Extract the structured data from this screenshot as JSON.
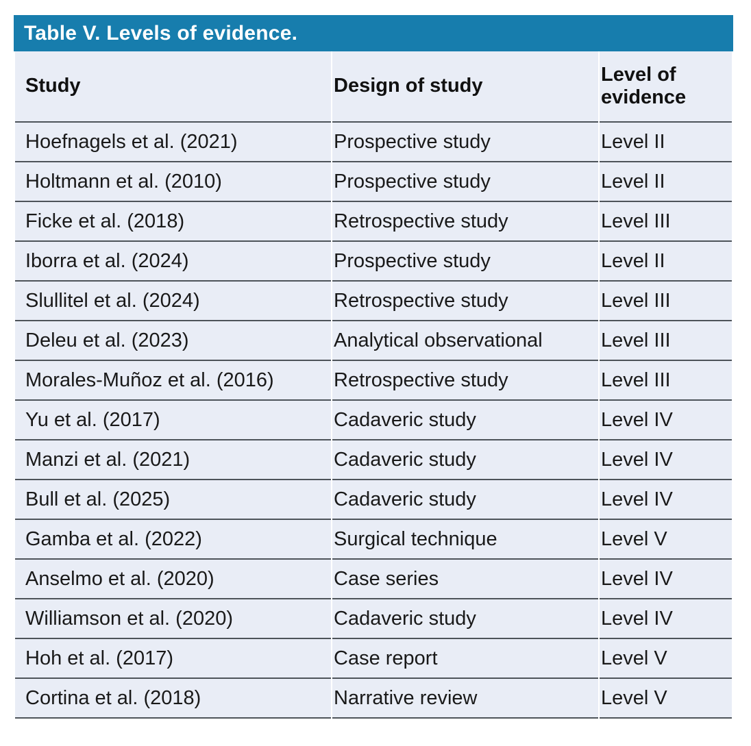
{
  "table": {
    "title": "Table V. Levels of evidence.",
    "columns": {
      "study": "Study",
      "design": "Design of study",
      "level": "Level of evidence"
    },
    "rows": [
      {
        "study": "Hoefnagels et al. (2021)",
        "design": "Prospective study",
        "level": "Level II"
      },
      {
        "study": "Holtmann et al. (2010)",
        "design": "Prospective study",
        "level": "Level II"
      },
      {
        "study": "Ficke et al. (2018)",
        "design": "Retrospective study",
        "level": "Level III"
      },
      {
        "study": "Iborra et al. (2024)",
        "design": "Prospective study",
        "level": "Level II"
      },
      {
        "study": "Slullitel et al. (2024)",
        "design": "Retrospective study",
        "level": "Level III"
      },
      {
        "study": "Deleu et al. (2023)",
        "design": "Analytical observational",
        "level": "Level III"
      },
      {
        "study": "Morales-Muñoz et al. (2016)",
        "design": "Retrospective study",
        "level": "Level III"
      },
      {
        "study": "Yu et al. (2017)",
        "design": "Cadaveric study",
        "level": "Level IV"
      },
      {
        "study": "Manzi et al. (2021)",
        "design": "Cadaveric study",
        "level": "Level IV"
      },
      {
        "study": "Bull et al. (2025)",
        "design": "Cadaveric study",
        "level": "Level IV"
      },
      {
        "study": "Gamba et al. (2022)",
        "design": "Surgical technique",
        "level": "Level V"
      },
      {
        "study": "Anselmo et al. (2020)",
        "design": "Case series",
        "level": "Level IV"
      },
      {
        "study": "Williamson et al. (2020)",
        "design": "Cadaveric study",
        "level": "Level IV"
      },
      {
        "study": "Hoh et al. (2017)",
        "design": "Case report",
        "level": "Level V"
      },
      {
        "study": "Cortina et al. (2018)",
        "design": "Narrative review",
        "level": "Level V"
      }
    ]
  },
  "colors": {
    "title_bar_background": "#177dad",
    "title_text": "#ffffff",
    "row_background": "#e9edf6",
    "rule_line": "#4d5359",
    "body_text": "#191919"
  }
}
